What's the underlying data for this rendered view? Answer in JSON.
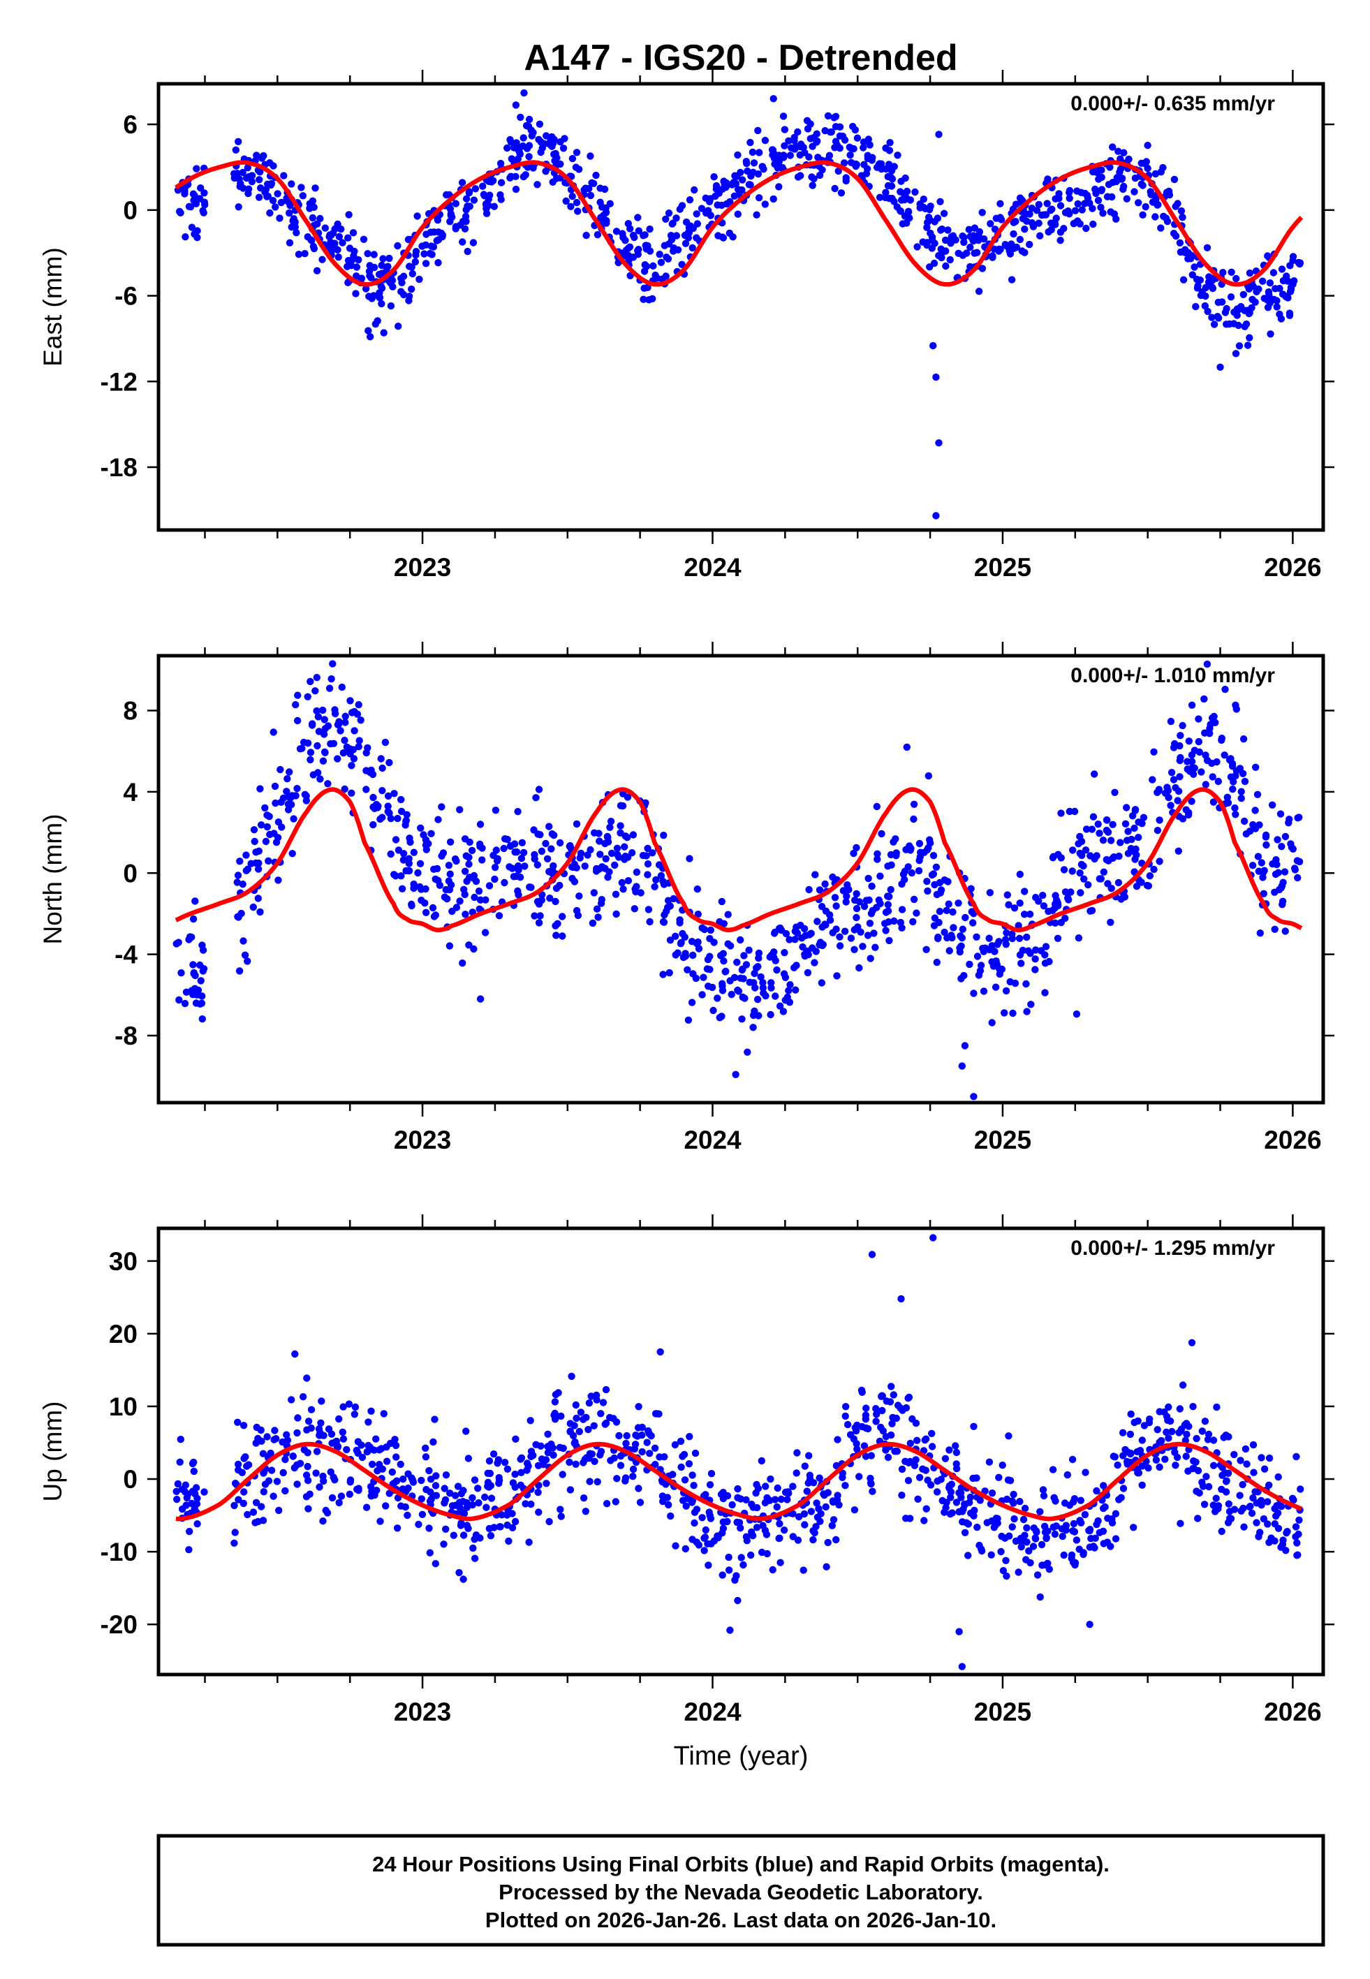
{
  "title": "A147 - IGS20 - Detrended",
  "xlabel": "Time (year)",
  "footer": {
    "line1": "24 Hour Positions Using Final Orbits (blue) and Rapid Orbits (magenta).",
    "line2": "Processed by the Nevada Geodetic Laboratory.",
    "line3": "Plotted on 2026-Jan-26. Last data on 2026-Jan-10."
  },
  "colors": {
    "points": "#0000ff",
    "fit": "#ff0000",
    "axes": "#000000"
  },
  "chart_data": [
    {
      "type": "scatter",
      "title": "A147 - IGS20 - Detrended",
      "ylabel": "East (mm)",
      "xlabel": "",
      "rate_label": "0.000+/- 0.635 mm/yr",
      "xlim": [
        2022.09,
        2026.105
      ],
      "ylim": [
        -22.4,
        8.84
      ],
      "xticks": [
        2023,
        2024,
        2025,
        2026
      ],
      "xtick_labels": [
        "2023",
        "2024",
        "2025",
        "2026"
      ],
      "yticks": [
        6,
        0,
        -6,
        -12,
        -18
      ],
      "ytick_labels": [
        "6",
        "0",
        "-6",
        "-12",
        "-18"
      ],
      "data_range": [
        2022.15,
        2026.03
      ],
      "bin_centers": [
        2022.2,
        2022.3,
        2022.4,
        2022.5,
        2022.6,
        2022.7,
        2022.8,
        2022.9,
        2023.0,
        2023.1,
        2023.2,
        2023.3,
        2023.4,
        2023.5,
        2023.6,
        2023.7,
        2023.8,
        2023.9,
        2024.0,
        2024.1,
        2024.2,
        2024.3,
        2024.4,
        2024.5,
        2024.6,
        2024.7,
        2024.8,
        2024.9,
        2025.0,
        2025.1,
        2025.2,
        2025.3,
        2025.4,
        2025.5,
        2025.6,
        2025.7,
        2025.8,
        2025.9,
        2026.0
      ],
      "bin_means": [
        0.5,
        null,
        2.5,
        1.5,
        -0.5,
        -3,
        -5,
        -5.5,
        -2.5,
        -0.5,
        0.5,
        3.5,
        4.5,
        2.5,
        0.5,
        -2.5,
        -4.5,
        -1.5,
        0.0,
        1.5,
        3.5,
        4.5,
        4.5,
        3.5,
        2.5,
        -0.5,
        -2.5,
        -2.5,
        -2.0,
        -0.5,
        0.5,
        1.5,
        2.5,
        2.0,
        -1,
        -5.5,
        -7,
        -6,
        -5.0
      ],
      "scatter_sd": 1.3,
      "outliers": [
        [
          2024.76,
          -9.5
        ],
        [
          2024.77,
          -11.7
        ],
        [
          2024.78,
          -16.3
        ],
        [
          2024.77,
          -21.4
        ],
        [
          2024.78,
          5.3
        ],
        [
          2025.75,
          -11
        ],
        [
          2023.35,
          8.2
        ],
        [
          2024.21,
          7.8
        ]
      ],
      "fit_cycle_phase": [
        0.0,
        0.1,
        0.2,
        0.3,
        0.4,
        0.5,
        0.6,
        0.7,
        0.8,
        0.9
      ],
      "fit_cycle_values": [
        -1.2,
        0.8,
        2.2,
        3.0,
        3.3,
        2.2,
        -0.8,
        -3.8,
        -5.2,
        -4.2
      ]
    },
    {
      "type": "scatter",
      "ylabel": "North (mm)",
      "xlabel": "",
      "rate_label": "0.000+/- 1.010 mm/yr",
      "xlim": [
        2022.09,
        2026.105
      ],
      "ylim": [
        -11.3,
        10.7
      ],
      "xticks": [
        2023,
        2024,
        2025,
        2026
      ],
      "xtick_labels": [
        "2023",
        "2024",
        "2025",
        "2026"
      ],
      "yticks": [
        8,
        4,
        0,
        -4,
        -8
      ],
      "ytick_labels": [
        "8",
        "4",
        "0",
        "-4",
        "-8"
      ],
      "data_range": [
        2022.15,
        2026.03
      ],
      "bin_centers": [
        2022.2,
        2022.3,
        2022.4,
        2022.5,
        2022.6,
        2022.7,
        2022.8,
        2022.9,
        2023.0,
        2023.1,
        2023.2,
        2023.3,
        2023.4,
        2023.5,
        2023.6,
        2023.7,
        2023.8,
        2023.9,
        2024.0,
        2024.1,
        2024.2,
        2024.3,
        2024.4,
        2024.5,
        2024.6,
        2024.7,
        2024.8,
        2024.9,
        2025.0,
        2025.1,
        2025.2,
        2025.3,
        2025.4,
        2025.5,
        2025.6,
        2025.7,
        2025.8,
        2025.9,
        2026.0
      ],
      "bin_means": [
        -4.5,
        null,
        -1.0,
        3,
        6,
        8,
        5.5,
        2.5,
        0,
        -0.5,
        0,
        0,
        0.5,
        0.5,
        0.5,
        1,
        0,
        -3.5,
        -4.5,
        -5.5,
        -5.5,
        -4.5,
        -2,
        -1.5,
        -1,
        0.5,
        -1.5,
        -4.0,
        -4.0,
        -3,
        -1,
        1,
        1,
        1.5,
        4,
        6.5,
        5,
        0.5,
        0.5
      ],
      "scatter_sd": 1.6,
      "outliers": [
        [
          2024.67,
          6.2
        ],
        [
          2024.87,
          -8.5
        ],
        [
          2024.86,
          -9.5
        ],
        [
          2024.9,
          -11
        ],
        [
          2023.2,
          -6.2
        ],
        [
          2022.22,
          -6.4
        ],
        [
          2022.69,
          10.3
        ]
      ],
      "fit_cycle_phase": [
        0.0,
        0.05,
        0.1,
        0.2,
        0.3,
        0.4,
        0.5,
        0.6,
        0.68,
        0.75,
        0.8,
        0.9,
        0.95
      ],
      "fit_cycle_values": [
        -2.5,
        -2.8,
        -2.6,
        -2.0,
        -1.5,
        -0.9,
        0.5,
        3.0,
        4.1,
        3.5,
        1.5,
        -1.5,
        -2.3
      ]
    },
    {
      "type": "scatter",
      "ylabel": "Up (mm)",
      "xlabel": "Time (year)",
      "rate_label": "0.000+/- 1.295 mm/yr",
      "xlim": [
        2022.09,
        2026.105
      ],
      "ylim": [
        -26.9,
        34.5
      ],
      "xticks": [
        2023,
        2024,
        2025,
        2026
      ],
      "xtick_labels": [
        "2023",
        "2024",
        "2025",
        "2026"
      ],
      "yticks": [
        30,
        20,
        10,
        0,
        -10,
        -20
      ],
      "ytick_labels": [
        "30",
        "20",
        "10",
        "0",
        "-10",
        "-20"
      ],
      "data_range": [
        2022.15,
        2026.03
      ],
      "bin_centers": [
        2022.2,
        2022.3,
        2022.4,
        2022.5,
        2022.6,
        2022.7,
        2022.8,
        2022.9,
        2023.0,
        2023.1,
        2023.2,
        2023.3,
        2023.4,
        2023.5,
        2023.6,
        2023.7,
        2023.8,
        2023.9,
        2024.0,
        2024.1,
        2024.2,
        2024.3,
        2024.4,
        2024.5,
        2024.6,
        2024.7,
        2024.8,
        2024.9,
        2025.0,
        2025.1,
        2025.2,
        2025.3,
        2025.4,
        2025.5,
        2025.6,
        2025.7,
        2025.8,
        2025.9,
        2026.0
      ],
      "bin_means": [
        -5,
        null,
        0,
        3,
        4,
        4,
        3,
        1,
        -1,
        -5,
        -4,
        -2,
        2,
        6,
        5,
        5,
        4,
        -2,
        -6,
        -8,
        -5,
        -4,
        -2,
        5,
        8,
        3,
        -1,
        -4,
        -6,
        -7,
        -6,
        -8,
        0,
        5,
        6,
        2,
        -1,
        -3,
        -6
      ],
      "scatter_sd": 4.0,
      "outliers": [
        [
          2024.55,
          30.9
        ],
        [
          2024.76,
          33.2
        ],
        [
          2024.65,
          24.8
        ],
        [
          2024.85,
          -21
        ],
        [
          2024.86,
          -25.8
        ],
        [
          2024.06,
          -20.8
        ],
        [
          2025.3,
          -20
        ],
        [
          2022.56,
          17.2
        ],
        [
          2023.82,
          17.5
        ]
      ],
      "fit_cycle_phase": [
        0.0,
        0.1,
        0.18,
        0.3,
        0.4,
        0.5,
        0.6,
        0.7,
        0.8,
        0.9
      ],
      "fit_cycle_values": [
        -3.6,
        -5.0,
        -5.4,
        -3.5,
        0.0,
        3.3,
        4.8,
        3.8,
        1.2,
        -1.5
      ]
    }
  ]
}
